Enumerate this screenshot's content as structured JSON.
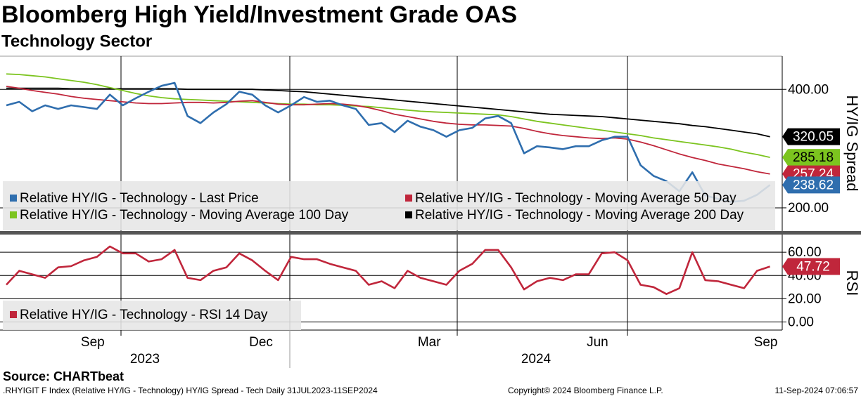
{
  "chart_data": {
    "type": "line",
    "title": "Bloomberg High Yield/Investment Grade OAS",
    "subtitle": "Technology Sector",
    "categories": [
      null,
      null,
      null,
      null,
      null,
      null,
      null,
      "Sep",
      null,
      null,
      null,
      null,
      null,
      null,
      null,
      null,
      null,
      null,
      null,
      null,
      "Dec",
      null,
      null,
      null,
      null,
      null,
      null,
      null,
      null,
      null,
      null,
      null,
      null,
      "Mar",
      null,
      null,
      null,
      null,
      null,
      null,
      null,
      null,
      null,
      null,
      null,
      null,
      "Jun",
      null,
      null,
      null,
      null,
      null,
      null,
      null,
      null,
      null,
      null,
      null,
      null,
      "Sep"
    ],
    "years": [
      "2023",
      "2024"
    ],
    "panels": [
      {
        "type": "line",
        "ylabel": "HY/IG Spread",
        "ylim": [
          162,
          456
        ],
        "yticks": [
          {
            "value": 200,
            "label": "200.00"
          },
          {
            "value": 400,
            "label": "400.00"
          }
        ],
        "series": [
          {
            "name": "Relative HY/IG - Technology - Moving Average 200 Day",
            "color": "#000000",
            "values": [
              402,
              402,
              402,
              402,
              402,
              401,
              401,
              401,
              401,
              401,
              401,
              401,
              401,
              401,
              400,
              400,
              400,
              400,
              400,
              400,
              399,
              398,
              397,
              396,
              394,
              392,
              390,
              388,
              386,
              384,
              382,
              380,
              378,
              376,
              374,
              372,
              370,
              368,
              366,
              364,
              362,
              360,
              358,
              357,
              356,
              355,
              354,
              352,
              350,
              348,
              346,
              344,
              342,
              339,
              337,
              334,
              331,
              328,
              325,
              320.05
            ]
          },
          {
            "name": "Relative HY/IG - Technology - Moving Average 100 Day",
            "color": "#7cc41f",
            "values": [
              426,
              425,
              423,
              421,
              418,
              415,
              412,
              408,
              403,
              398,
              393,
              389,
              386,
              384,
              383,
              382,
              381,
              380,
              379,
              378,
              377,
              376,
              375,
              375,
              374,
              374,
              373,
              372,
              371,
              369,
              367,
              365,
              363,
              362,
              361,
              360,
              359,
              358,
              357,
              354,
              350,
              346,
              343,
              340,
              337,
              334,
              331,
              328,
              325,
              322,
              318,
              315,
              312,
              309,
              306,
              303,
              299,
              294,
              290,
              285.18
            ]
          },
          {
            "name": "Relative HY/IG - Technology - Moving Average 50 Day",
            "color": "#c0263b",
            "values": [
              405,
              402,
              398,
              395,
              392,
              388,
              385,
              383,
              381,
              379,
              377,
              376,
              376,
              377,
              378,
              378,
              377,
              378,
              380,
              381,
              378,
              375,
              374,
              374,
              375,
              376,
              375,
              373,
              369,
              364,
              358,
              354,
              350,
              346,
              343,
              341,
              340,
              340,
              339,
              338,
              334,
              329,
              325,
              322,
              320,
              318,
              317,
              318,
              316,
              311,
              305,
              298,
              291,
              285,
              280,
              274,
              270,
              266,
              261,
              257.24
            ]
          },
          {
            "name": "Relative HY/IG - Technology - Last Price",
            "color": "#2f6eae",
            "values": [
              373,
              379,
              363,
              373,
              367,
              373,
              370,
              367,
              391,
              373,
              385,
              396,
              406,
              411,
              355,
              343,
              361,
              375,
              396,
              391,
              373,
              361,
              373,
              387,
              379,
              381,
              373,
              367,
              340,
              343,
              328,
              347,
              337,
              331,
              320,
              331,
              335,
              351,
              355,
              343,
              292,
              304,
              302,
              299,
              304,
              304,
              314,
              320,
              320,
              272,
              254,
              245,
              228,
              260,
              221,
              215,
              210,
              212,
              222,
              238.62
            ]
          }
        ]
      },
      {
        "type": "line",
        "ylabel": "RSI",
        "ylim": [
          -7,
          74
        ],
        "yticks": [
          {
            "value": 0,
            "label": "0.00"
          },
          {
            "value": 20,
            "label": "20.00"
          },
          {
            "value": 40,
            "label": "40.00"
          },
          {
            "value": 60,
            "label": "60.00"
          }
        ],
        "series": [
          {
            "name": "Relative HY/IG - Technology - RSI 14 Day",
            "color": "#c0263b",
            "values": [
              32,
              44,
              41,
              38,
              47,
              48,
              53,
              56,
              65,
              59,
              59,
              52,
              54,
              62,
              38,
              36,
              44,
              47,
              59,
              53,
              44,
              36,
              56,
              54,
              54,
              50,
              47,
              44,
              32,
              35,
              29,
              44,
              38,
              35,
              32,
              44,
              50,
              62,
              62,
              47,
              28,
              35,
              38,
              36,
              41,
              41,
              59,
              60,
              53,
              32,
              30,
              24,
              29,
              60,
              36,
              35,
              32,
              29,
              44,
              47.72
            ]
          }
        ]
      }
    ]
  },
  "footer": {
    "source": "Source: CHARTbeat",
    "index": ".RHYIGIT F Index (Relative HY/IG - Technology) HY/IG Spread - Tech  Daily 31JUL2023-11SEP2024",
    "copyright": "Copyright© 2024 Bloomberg Finance L.P.",
    "timestamp": "11-Sep-2024 07:06:57"
  }
}
